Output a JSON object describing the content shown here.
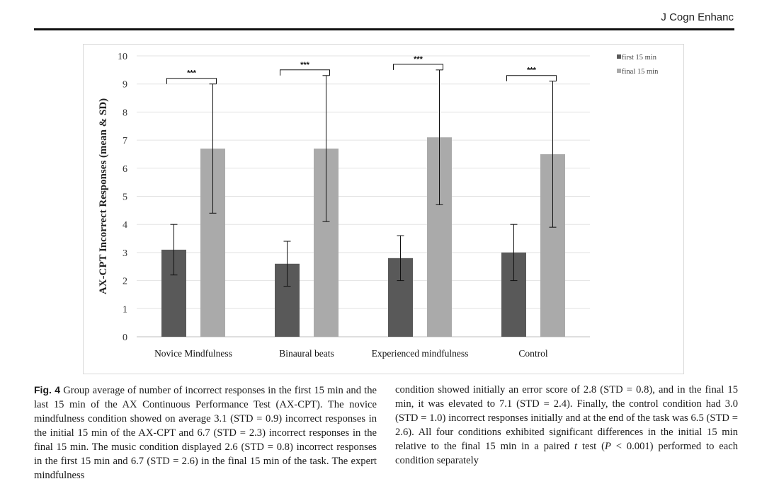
{
  "header": {
    "journal": "J Cogn Enhanc"
  },
  "chart_data": {
    "type": "bar",
    "title": "",
    "xlabel": "",
    "ylabel": "AX-CPT Incorrect Responses (mean & SD)",
    "ylim": [
      0,
      10
    ],
    "yticks": [
      "0",
      "1",
      "2",
      "3",
      "4",
      "5",
      "6",
      "7",
      "8",
      "9",
      "10"
    ],
    "categories": [
      "Novice Mindfulness",
      "Binaural beats",
      "Experienced mindfulness",
      "Control"
    ],
    "series": [
      {
        "name": "first 15 min",
        "values": [
          3.1,
          2.6,
          2.8,
          3.0
        ],
        "sd": [
          0.9,
          0.8,
          0.8,
          1.0
        ],
        "color": "#595959"
      },
      {
        "name": "final 15 min",
        "values": [
          6.7,
          6.7,
          7.1,
          6.5
        ],
        "sd": [
          2.3,
          2.6,
          2.4,
          2.6
        ],
        "color": "#aaaaaa"
      }
    ],
    "significance": [
      "***",
      "***",
      "***",
      "***"
    ],
    "grid": true,
    "legend_position": "top-right"
  },
  "caption": {
    "label": "Fig. 4",
    "col1_text": "Group average of number of incorrect responses in the first 15 min and the last 15 min of the AX Continuous Performance Test (AX-CPT). The novice mindfulness condition showed on average 3.1 (STD = 0.9) incorrect responses in the initial 15 min of the AX-CPT and 6.7 (STD = 2.3) incorrect responses in the final 15 min. The music condition displayed 2.6 (STD = 0.8) incorrect responses in the first 15 min and 6.7 (STD = 2.6) in the final 15 min of the task. The expert mindfulness",
    "col2_text": "condition showed initially an error score of 2.8 (STD = 0.8), and in the final 15 min, it was elevated to 7.1 (STD = 2.4). Finally, the control condition had 3.0 (STD = 1.0) incorrect responses initially and at the end of the task was 6.5 (STD = 2.6). All four conditions exhibited significant differences in the initial 15 min relative to the final 15 min in a paired",
    "col2_italic": "t",
    "col2_tail": " test (",
    "col2_p": "P",
    "col2_end": " < 0.001) performed to each condition separately"
  }
}
